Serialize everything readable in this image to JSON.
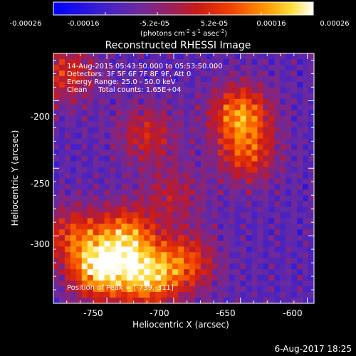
{
  "colorbar": {
    "ticks": [
      "-0.00026",
      "-0.00016",
      "-5.2e-05",
      "5.2e-05",
      "0.00016",
      "0.00026"
    ],
    "units_main": "(photons cm",
    "units_sup1": "-2",
    "units_mid1": " s",
    "units_sup2": "-1",
    "units_mid2": " asec",
    "units_sup3": "-2",
    "units_end": ")"
  },
  "chart_data": {
    "type": "heatmap",
    "title": "Reconstructed RHESSI Image",
    "xlabel": "Heliocentric X (arcsec)",
    "ylabel": "Heliocentric Y (arcsec)",
    "xlim": [
      -790,
      -595
    ],
    "ylim": [
      -350,
      -165
    ],
    "xticks": [
      -750,
      -700,
      -650,
      -600
    ],
    "yticks": [
      -200,
      -250,
      -300
    ],
    "colorbar_range": [
      -0.00026,
      0.00026
    ],
    "colormap": "RHESSI blue-purple-red-yellow-white",
    "peak": [
      -739,
      -311
    ],
    "hotspots": [
      {
        "x": -755,
        "y": -325,
        "strength": 1.0
      },
      {
        "x": -720,
        "y": -330,
        "strength": 0.9
      },
      {
        "x": -735,
        "y": -300,
        "strength": 0.75
      },
      {
        "x": -690,
        "y": -320,
        "strength": 0.6
      },
      {
        "x": -775,
        "y": -300,
        "strength": 0.55
      },
      {
        "x": -650,
        "y": -210,
        "strength": 0.8
      },
      {
        "x": -645,
        "y": -240,
        "strength": 0.55
      },
      {
        "x": -720,
        "y": -225,
        "strength": 0.45
      },
      {
        "x": -780,
        "y": -180,
        "strength": 0.5
      },
      {
        "x": -700,
        "y": -270,
        "strength": 0.35
      }
    ]
  },
  "annotations": {
    "time": "14-Aug-2015 05:43:50.000 to 05:53:50.000",
    "detectors": "Detectors: 3F 5F 6F 7F 8F 9F, Att 0",
    "energy": "Energy Range: 25.0 - 50.0 keV",
    "clean": "Clean     Total counts: 1.65E+04",
    "peak_label": "Position of Peak = [-739,-311]"
  },
  "footer": {
    "date": "6-Aug-2017 18:25"
  }
}
